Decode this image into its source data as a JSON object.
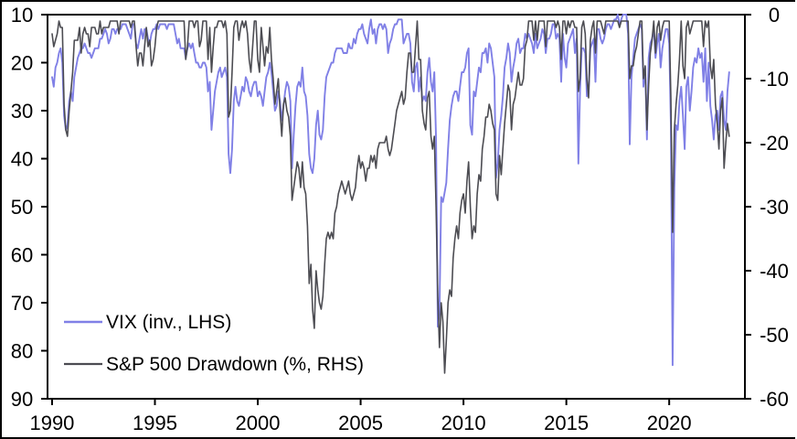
{
  "figure": {
    "background": "#ffffff",
    "border_color": "#000000",
    "axis_color": "#000000",
    "text_color": "#000000"
  },
  "chart_data": {
    "type": "line",
    "title": "",
    "xlabel": "",
    "ylabel_left": "",
    "ylabel_right": "",
    "grid": false,
    "legend_position": "lower-left-inside",
    "x_axis": {
      "ticks": [
        1990,
        1995,
        2000,
        2005,
        2010,
        2015,
        2020
      ],
      "range": [
        1989.78,
        2023.68
      ]
    },
    "y_axis_left": {
      "ticks": [
        10,
        20,
        30,
        40,
        50,
        60,
        70,
        80,
        90
      ],
      "range": [
        10,
        90
      ],
      "inverted": true
    },
    "y_axis_right": {
      "ticks": [
        0,
        -10,
        -20,
        -30,
        -40,
        -50,
        -60
      ],
      "range": [
        0,
        -60
      ]
    },
    "x_start": 1990.0,
    "x_step_years": 0.0833333,
    "series": [
      {
        "name": "VIX (inv., LHS)",
        "axis": "left",
        "color": "#8080E6",
        "stroke_width": 1.9,
        "values": [
          23,
          25,
          21,
          20,
          18,
          17,
          20,
          31,
          34,
          33,
          28,
          26,
          28,
          23,
          21,
          19,
          18,
          17,
          17,
          16,
          17,
          18,
          18,
          19,
          18,
          17,
          17,
          17,
          15,
          15,
          14,
          13,
          14,
          16,
          15,
          13,
          13,
          14,
          13,
          13,
          13,
          12,
          12,
          12,
          13,
          14,
          15,
          12,
          12,
          16,
          17,
          15,
          13,
          15,
          13,
          13,
          15,
          16,
          14,
          13,
          13,
          12,
          13,
          12,
          12,
          12,
          12,
          13,
          12,
          12,
          12,
          12,
          14,
          16,
          15,
          17,
          17,
          17,
          19,
          17,
          16,
          17,
          16,
          18,
          20,
          20,
          21,
          21,
          20,
          20,
          21,
          26,
          24,
          34,
          30,
          26,
          24,
          22,
          21,
          23,
          22,
          21,
          23,
          39,
          43,
          38,
          28,
          25,
          28,
          29,
          27,
          25,
          26,
          23,
          24,
          26,
          27,
          25,
          24,
          24,
          27,
          26,
          27,
          29,
          26,
          23,
          22,
          20,
          22,
          26,
          30,
          29,
          26,
          28,
          32,
          29,
          26,
          24,
          25,
          28,
          42,
          35,
          29,
          25,
          24,
          25,
          21,
          26,
          27,
          31,
          39,
          42,
          43,
          40,
          33,
          30,
          35,
          36,
          34,
          27,
          23,
          22,
          21,
          20,
          20,
          18,
          17,
          17,
          17,
          17,
          18,
          18,
          18,
          16,
          17,
          17,
          15,
          16,
          14,
          13,
          13,
          12,
          14,
          15,
          16,
          13,
          11,
          14,
          13,
          16,
          13,
          12,
          12,
          13,
          12,
          13,
          18,
          16,
          15,
          13,
          12,
          12,
          11,
          11,
          11,
          16,
          15,
          14,
          14,
          16,
          24,
          26,
          21,
          20,
          26,
          23,
          28,
          27,
          28,
          22,
          19,
          24,
          26,
          22,
          36,
          75,
          72,
          48,
          49,
          47,
          45,
          38,
          32,
          29,
          27,
          26,
          26,
          28,
          25,
          22,
          22,
          21,
          18,
          17,
          33,
          35,
          26,
          27,
          24,
          21,
          22,
          18,
          18,
          17,
          20,
          16,
          17,
          20,
          23,
          44,
          41,
          34,
          31,
          27,
          21,
          19,
          16,
          18,
          24,
          21,
          19,
          16,
          15,
          18,
          17,
          17,
          14,
          15,
          14,
          15,
          16,
          18,
          14,
          17,
          16,
          15,
          13,
          14,
          18,
          15,
          15,
          14,
          12,
          12,
          15,
          14,
          15,
          24,
          14,
          19,
          21,
          16,
          15,
          14,
          13,
          18,
          15,
          41,
          26,
          17,
          17,
          18,
          27,
          26,
          17,
          16,
          15,
          24,
          13,
          13,
          15,
          16,
          15,
          13,
          12,
          12,
          13,
          12,
          11,
          11,
          10,
          12,
          11,
          10,
          10,
          10,
          14,
          37,
          23,
          19,
          15,
          14,
          13,
          12,
          13,
          25,
          21,
          36,
          19,
          16,
          15,
          13,
          19,
          16,
          14,
          21,
          17,
          15,
          13,
          13,
          16,
          33,
          83,
          46,
          33,
          34,
          28,
          25,
          31,
          38,
          25,
          23,
          30,
          26,
          21,
          19,
          20,
          17,
          19,
          18,
          24,
          17,
          28,
          20,
          29,
          32,
          36,
          31,
          30,
          34,
          27,
          26,
          32,
          34,
          26,
          22
        ]
      },
      {
        "name": "S&P 500 Drawdown (%, RHS)",
        "axis": "right",
        "color": "#4C4C52",
        "stroke_width": 1.6,
        "values": [
          -3,
          -5,
          -4,
          -3,
          -1,
          -2,
          -2,
          -14,
          -18,
          -19,
          -15,
          -12,
          -9,
          -4,
          -4,
          -4,
          -2,
          -6,
          -3,
          -2,
          -3,
          -3,
          -5,
          -2,
          -2,
          -2,
          -3,
          -3,
          -1,
          -3,
          -2,
          -2,
          -2,
          -2,
          -1,
          -1,
          -1,
          -1,
          -1,
          -3,
          -1,
          -1,
          -1,
          -1,
          -1,
          -1,
          -2,
          -1,
          -1,
          -5,
          -8,
          -6,
          -6,
          -8,
          -5,
          -2,
          -5,
          -4,
          -8,
          -7,
          -5,
          -2,
          -1,
          -1,
          -1,
          -1,
          -1,
          -1,
          -1,
          -1,
          -1,
          -1,
          -1,
          -1,
          -1,
          -1,
          -1,
          -1,
          -7,
          -5,
          -1,
          -1,
          -1,
          -2,
          -1,
          -1,
          -5,
          -4,
          -1,
          -1,
          -1,
          -7,
          -2,
          -9,
          -5,
          -2,
          -2,
          -1,
          -1,
          -1,
          -2,
          -1,
          -3,
          -16,
          -15,
          -9,
          -2,
          -1,
          -1,
          -4,
          -2,
          -1,
          -2,
          -1,
          -3,
          -7,
          -9,
          -5,
          -1,
          -1,
          -7,
          -9,
          -2,
          -5,
          -8,
          -5,
          -6,
          -2,
          -7,
          -10,
          -14,
          -12,
          -10,
          -15,
          -19,
          -14,
          -13,
          -15,
          -16,
          -19,
          -29,
          -27,
          -25,
          -23,
          -24,
          -27,
          -23,
          -27,
          -28,
          -33,
          -42,
          -39,
          -46,
          -49,
          -40,
          -43,
          -45,
          -46,
          -44,
          -39,
          -35,
          -34,
          -35,
          -34,
          -35,
          -31,
          -30,
          -28,
          -27,
          -26,
          -27,
          -28,
          -27,
          -26,
          -28,
          -29,
          -28,
          -27,
          -24,
          -22,
          -24,
          -23,
          -24,
          -26,
          -24,
          -24,
          -22,
          -23,
          -22,
          -24,
          -21,
          -20,
          -20,
          -20,
          -20,
          -19,
          -21,
          -22,
          -21,
          -19,
          -17,
          -15,
          -14,
          -13,
          -12,
          -14,
          -13,
          -9,
          -6,
          -6,
          -9,
          -9,
          -5,
          -1,
          -7,
          -7,
          -15,
          -17,
          -18,
          -13,
          -12,
          -19,
          -21,
          -19,
          -30,
          -44,
          -52,
          -45,
          -48,
          -56,
          -51,
          -45,
          -43,
          -44,
          -38,
          -35,
          -33,
          -35,
          -31,
          -29,
          -28,
          -31,
          -26,
          -23,
          -30,
          -35,
          -33,
          -34,
          -28,
          -25,
          -26,
          -21,
          -19,
          -16,
          -16,
          -14,
          -15,
          -17,
          -18,
          -28,
          -29,
          -22,
          -25,
          -21,
          -17,
          -14,
          -11,
          -12,
          -18,
          -14,
          -13,
          -11,
          -9,
          -11,
          -11,
          -10,
          -5,
          -4,
          -1,
          -1,
          -1,
          -4,
          -1,
          -4,
          -1,
          -1,
          -1,
          -1,
          -5,
          -1,
          -1,
          -1,
          -1,
          -1,
          -2,
          -1,
          -2,
          -7,
          -1,
          -1,
          -3,
          -1,
          -2,
          -1,
          -1,
          -2,
          -2,
          -12,
          -10,
          -2,
          -1,
          -3,
          -10,
          -13,
          -4,
          -2,
          -1,
          -6,
          -1,
          -1,
          -1,
          -2,
          -3,
          -1,
          -1,
          -1,
          -1,
          -1,
          -1,
          -1,
          -1,
          -2,
          -1,
          -1,
          -1,
          -1,
          -1,
          -10,
          -8,
          -8,
          -6,
          -5,
          -3,
          -1,
          -1,
          -10,
          -8,
          -18,
          -11,
          -6,
          -4,
          -1,
          -6,
          -2,
          -1,
          -4,
          -2,
          -1,
          -1,
          -1,
          -1,
          -13,
          -34,
          -18,
          -14,
          -11,
          -7,
          -1,
          -8,
          -10,
          -2,
          -1,
          -3,
          -2,
          -1,
          -1,
          -1,
          -1,
          -1,
          -1,
          -5,
          -1,
          -2,
          -1,
          -8,
          -10,
          -7,
          -14,
          -17,
          -21,
          -15,
          -13,
          -24,
          -20,
          -17,
          -19
        ]
      }
    ]
  },
  "legend": {
    "items": [
      {
        "label": "VIX (inv., LHS)"
      },
      {
        "label": "S&P 500 Drawdown (%, RHS)"
      }
    ]
  }
}
